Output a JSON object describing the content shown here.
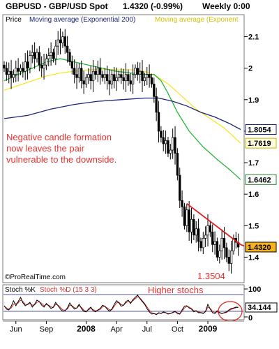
{
  "header": {
    "symbol": "GBPUSD - GBP/USD Spot",
    "price": "1.4320 (-0.99%)",
    "period": "Weekly 0:00"
  },
  "main_panel": {
    "price_label": "Price",
    "ma200_label": "Moving average (Exponential 200)",
    "ma_second_label": "Moving average (Exponent",
    "annotation": [
      "Negative candle formation",
      "now leaves the pair",
      "vulnerable to the downside."
    ],
    "low_label": "1.3504",
    "credit": "©ProRealTime.com"
  },
  "stoch_panel": {
    "label_k": "Stoch %K",
    "label_d": "Stoch %D (15 3 3)",
    "annotation": "Higher stochs",
    "tick_labels": [
      "100",
      "0"
    ],
    "value_tag": "34.144"
  },
  "colors": {
    "ma200": "#1a237e",
    "ma_yellow": "#f5e82a",
    "ma_green": "#28b33c",
    "trendline": "#e21c1c",
    "annotation": "#e8312f",
    "price_tag_bg": "#f7b21d",
    "stoch_k": "#000000",
    "stoch_d": "#d0312d"
  },
  "chart_data": {
    "type": "candlestick",
    "y_ticks": [
      2.1,
      2.0,
      1.9,
      1.8,
      1.7,
      1.6,
      1.5,
      1.4
    ],
    "y_tick_labels": [
      "2.1",
      "2",
      "1.9",
      "1.8",
      "1.7",
      "1.6",
      "1.5",
      "1.4"
    ],
    "ylim": [
      1.33,
      2.15
    ],
    "x_labels": [
      {
        "label": "Jun",
        "t": 5,
        "bold": false
      },
      {
        "label": "Sep",
        "t": 18,
        "bold": false
      },
      {
        "label": "2008",
        "t": 35,
        "bold": true
      },
      {
        "label": "Apr",
        "t": 48,
        "bold": false
      },
      {
        "label": "Jul",
        "t": 61,
        "bold": false
      },
      {
        "label": "Oct",
        "t": 74,
        "bold": false
      },
      {
        "label": "2009",
        "t": 87,
        "bold": true
      }
    ],
    "x_range": [
      0,
      101
    ],
    "price_tags": [
      {
        "value": 1.8054,
        "label": "1.8054",
        "color": "#1a237e",
        "fill": "#ffffff"
      },
      {
        "value": 1.7619,
        "label": "1.7619",
        "color": "#c9b400",
        "fill": "#fffde0"
      },
      {
        "value": 1.6462,
        "label": "1.6462",
        "color": "#1f8a2e",
        "fill": "#ffffff"
      },
      {
        "value": 1.432,
        "label": "1.4320",
        "color": "#000000",
        "fill": "#f7b21d"
      }
    ],
    "closes": [
      2.0,
      1.98,
      1.99,
      1.97,
      1.98,
      2.0,
      1.99,
      2.0,
      1.99,
      2.02,
      2.0,
      2.04,
      2.05,
      2.03,
      2.05,
      2.01,
      2.0,
      2.01,
      2.03,
      2.04,
      2.05,
      2.03,
      2.07,
      2.09,
      2.08,
      2.1,
      2.07,
      2.05,
      2.02,
      2.0,
      1.98,
      1.97,
      2.0,
      1.96,
      1.95,
      1.97,
      1.98,
      1.96,
      1.99,
      1.98,
      2.0,
      1.98,
      1.97,
      1.98,
      1.96,
      1.95,
      1.98,
      1.96,
      1.97,
      1.98,
      1.97,
      1.96,
      1.98,
      1.96,
      1.95,
      1.98,
      2.0,
      1.98,
      1.99,
      1.96,
      1.97,
      1.98,
      1.97,
      1.95,
      1.91,
      1.86,
      1.8,
      1.78,
      1.76,
      1.77,
      1.73,
      1.74,
      1.78,
      1.73,
      1.66,
      1.58,
      1.56,
      1.5,
      1.55,
      1.48,
      1.52,
      1.47,
      1.49,
      1.45,
      1.43,
      1.46,
      1.47,
      1.5,
      1.48,
      1.44,
      1.45,
      1.4,
      1.42,
      1.46,
      1.43,
      1.4,
      1.38,
      1.42,
      1.46,
      1.447,
      1.432
    ],
    "ma200_points": [
      [
        0,
        1.84
      ],
      [
        10,
        1.85
      ],
      [
        20,
        1.87
      ],
      [
        30,
        1.885
      ],
      [
        40,
        1.895
      ],
      [
        50,
        1.9
      ],
      [
        60,
        1.905
      ],
      [
        66,
        1.905
      ],
      [
        72,
        1.895
      ],
      [
        78,
        1.88
      ],
      [
        84,
        1.86
      ],
      [
        90,
        1.845
      ],
      [
        96,
        1.825
      ],
      [
        101,
        1.8054
      ]
    ],
    "ma_yellow_points": [
      [
        0,
        1.93
      ],
      [
        6,
        1.945
      ],
      [
        12,
        1.96
      ],
      [
        18,
        1.975
      ],
      [
        24,
        1.985
      ],
      [
        30,
        1.99
      ],
      [
        36,
        1.995
      ],
      [
        42,
        1.996
      ],
      [
        48,
        1.995
      ],
      [
        54,
        1.995
      ],
      [
        60,
        1.99
      ],
      [
        65,
        1.975
      ],
      [
        70,
        1.95
      ],
      [
        76,
        1.91
      ],
      [
        82,
        1.87
      ],
      [
        88,
        1.84
      ],
      [
        94,
        1.81
      ],
      [
        101,
        1.7619
      ]
    ],
    "ma_green_points": [
      [
        0,
        1.96
      ],
      [
        6,
        1.98
      ],
      [
        12,
        2.0
      ],
      [
        18,
        2.02
      ],
      [
        24,
        2.03
      ],
      [
        30,
        2.02
      ],
      [
        36,
        2.01
      ],
      [
        42,
        2.0
      ],
      [
        48,
        1.99
      ],
      [
        54,
        1.985
      ],
      [
        60,
        1.98
      ],
      [
        64,
        1.98
      ],
      [
        67,
        1.96
      ],
      [
        70,
        1.92
      ],
      [
        74,
        1.86
      ],
      [
        79,
        1.8
      ],
      [
        85,
        1.75
      ],
      [
        91,
        1.71
      ],
      [
        96,
        1.68
      ],
      [
        101,
        1.6462
      ]
    ],
    "trendline": [
      [
        78,
        1.57
      ],
      [
        101,
        1.44
      ]
    ],
    "stoch_ylim": [
      0,
      100
    ],
    "stoch_k": [
      40,
      28,
      25,
      38,
      58,
      40,
      55,
      70,
      50,
      40,
      45,
      52,
      35,
      45,
      60,
      55,
      42,
      35,
      48,
      40,
      30,
      35,
      52,
      40,
      28,
      20,
      22,
      32,
      50,
      38,
      28,
      32,
      45,
      30,
      20,
      18,
      28,
      35,
      22,
      18,
      25,
      30,
      42,
      38,
      28,
      20,
      28,
      45,
      58,
      50,
      38,
      42,
      55,
      60,
      48,
      62,
      70,
      78,
      65,
      55,
      45,
      30,
      18,
      10,
      12,
      8,
      15,
      12,
      18,
      15,
      10,
      12,
      16,
      20,
      12,
      10,
      25,
      38,
      40,
      32,
      28,
      18,
      22,
      15,
      15,
      12,
      20,
      45,
      28,
      15,
      12,
      22,
      15,
      12,
      15,
      18,
      25,
      30,
      32,
      35,
      34.144
    ],
    "stoch_d": [
      38,
      32,
      28,
      32,
      45,
      48,
      50,
      60,
      55,
      45,
      44,
      48,
      42,
      43,
      52,
      54,
      48,
      40,
      44,
      42,
      36,
      34,
      45,
      42,
      34,
      25,
      24,
      28,
      42,
      40,
      33,
      31,
      40,
      34,
      25,
      20,
      25,
      30,
      26,
      22,
      23,
      27,
      36,
      38,
      32,
      25,
      26,
      38,
      50,
      52,
      44,
      42,
      50,
      56,
      52,
      58,
      65,
      72,
      68,
      58,
      48,
      36,
      24,
      15,
      12,
      10,
      13,
      13,
      16,
      15,
      12,
      12,
      15,
      18,
      15,
      12,
      20,
      32,
      38,
      35,
      30,
      22,
      22,
      18,
      16,
      14,
      18,
      35,
      30,
      20,
      15,
      18,
      16,
      13,
      14,
      16,
      22,
      27,
      30,
      33,
      34
    ]
  }
}
